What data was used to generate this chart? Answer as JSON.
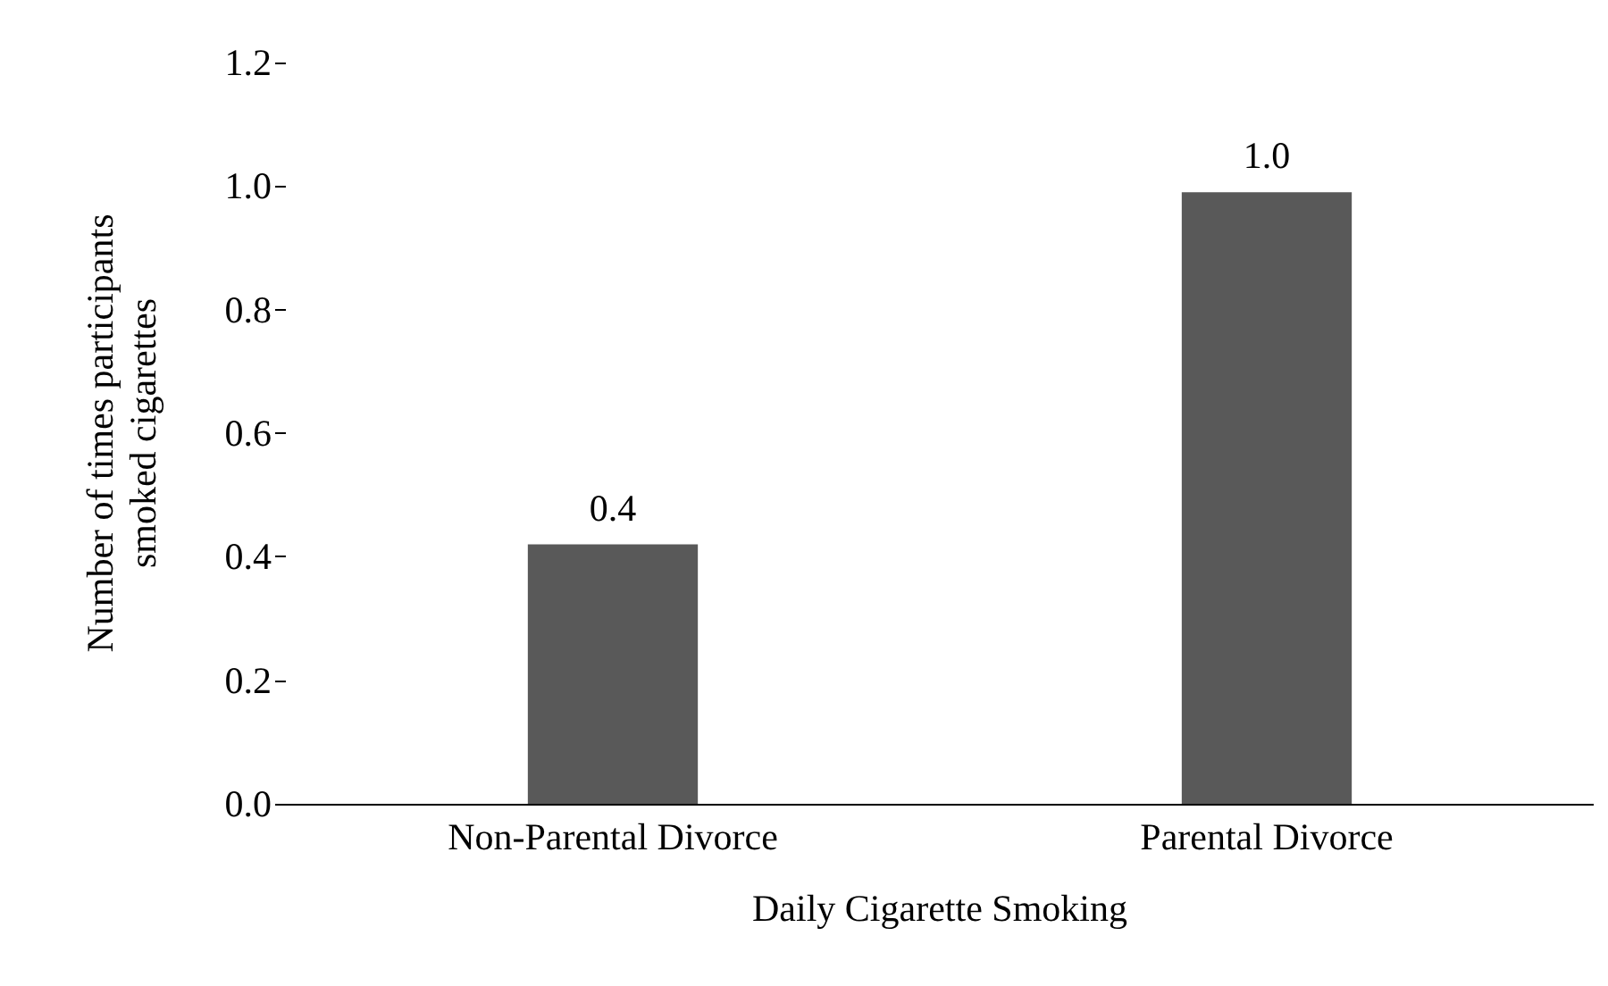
{
  "chart_data": {
    "type": "bar",
    "xlabel": "Daily Cigarette Smoking",
    "ylabel": "Number of times participants\nsmoked cigarettes",
    "categories": [
      "Non-Parental Divorce",
      "Parental Divorce"
    ],
    "values": [
      0.42,
      0.99
    ],
    "value_labels": [
      "0.4",
      "1.0"
    ],
    "color": "#595959",
    "ylim": [
      0,
      1.2
    ],
    "yticks": [
      {
        "value": 0,
        "label": "0.0"
      },
      0.2,
      0.4,
      0.6,
      0.8,
      {
        "value": 1,
        "label": "1.0"
      },
      1.2
    ],
    "grid": false
  }
}
